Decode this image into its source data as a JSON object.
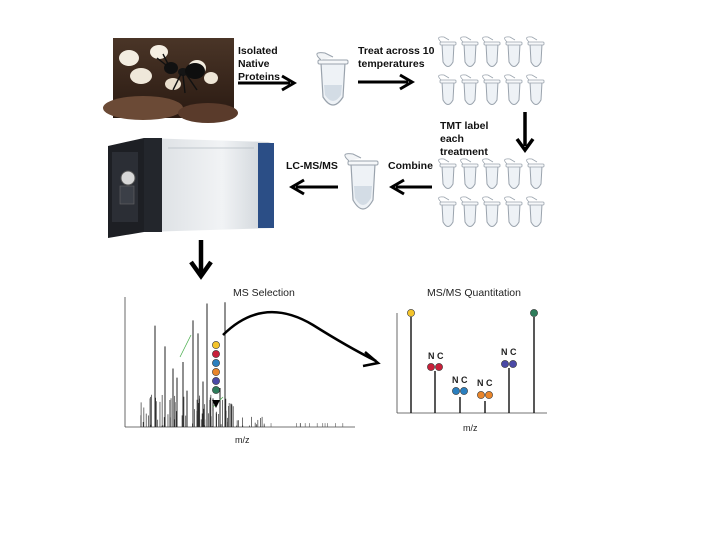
{
  "steps": {
    "isolate": "Isolated Native Proteins",
    "treat": "Treat across 10 temperatures",
    "tmt": "TMT label each treatment",
    "combine": "Combine",
    "lcms": "LC-MS/MS"
  },
  "ms_selection": {
    "title": "MS Selection",
    "xlabel": "m/z",
    "dot_colors": [
      "#f4c42b",
      "#c8203a",
      "#2a7fbf",
      "#e9852a",
      "#4b4aa6",
      "#2e7d5b"
    ]
  },
  "msms": {
    "title": "MS/MS Quantitation",
    "xlabel": "m/z",
    "pair_labels": [
      "N C",
      "N C",
      "N C",
      "N C"
    ],
    "colors": {
      "yellow": "#f4c42b",
      "red": "#c8203a",
      "blue": "#2a7fbf",
      "orange": "#e9852a",
      "purple": "#4b4aa6",
      "green": "#2e7d5b"
    }
  },
  "icons": [
    "ant-photo",
    "microcentrifuge-tube-icon",
    "mass-spectrometer-icon"
  ]
}
